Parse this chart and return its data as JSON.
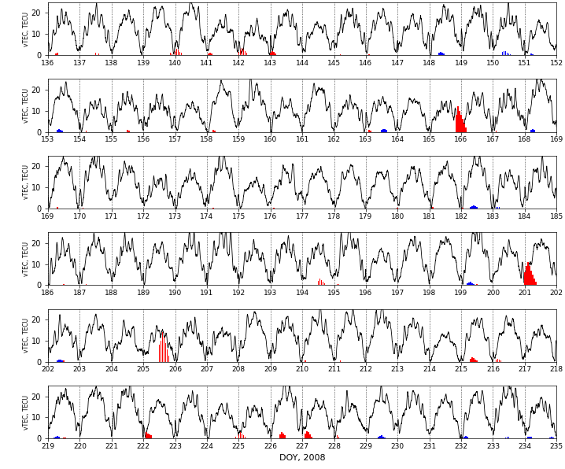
{
  "rows": [
    {
      "doy_start": 136,
      "doy_end": 152,
      "x_ticks": [
        136,
        137,
        138,
        139,
        140,
        141,
        142,
        143,
        144,
        145,
        146,
        147,
        148,
        149,
        150,
        151,
        152
      ]
    },
    {
      "doy_start": 153,
      "doy_end": 169,
      "x_ticks": [
        153,
        154,
        155,
        156,
        157,
        158,
        159,
        160,
        161,
        162,
        163,
        164,
        165,
        166,
        167,
        168,
        169
      ]
    },
    {
      "doy_start": 169,
      "doy_end": 185,
      "x_ticks": [
        169,
        170,
        171,
        172,
        173,
        174,
        175,
        176,
        177,
        178,
        179,
        180,
        181,
        182,
        183,
        184,
        185
      ]
    },
    {
      "doy_start": 186,
      "doy_end": 202,
      "x_ticks": [
        186,
        187,
        188,
        189,
        190,
        191,
        192,
        193,
        194,
        195,
        196,
        197,
        198,
        199,
        200,
        201,
        202
      ]
    },
    {
      "doy_start": 202,
      "doy_end": 218,
      "x_ticks": [
        202,
        203,
        204,
        205,
        206,
        207,
        208,
        209,
        210,
        211,
        212,
        213,
        214,
        215,
        216,
        217,
        218
      ]
    },
    {
      "doy_start": 219,
      "doy_end": 235,
      "x_ticks": [
        219,
        220,
        221,
        222,
        223,
        224,
        225,
        226,
        227,
        228,
        229,
        230,
        231,
        232,
        233,
        234,
        235
      ]
    }
  ],
  "ylim": [
    0,
    25
  ],
  "yticks": [
    0,
    10,
    20
  ],
  "ylabel": "vTEC, TECU",
  "xlabel": "DOY, 2008",
  "line_color": "#000000",
  "red_color": "#ff0000",
  "blue_color": "#0000ff",
  "special_red": {
    "0": [
      [
        136.25,
        0.8
      ],
      [
        136.3,
        1.0
      ],
      [
        137.5,
        1.2
      ],
      [
        137.6,
        0.9
      ],
      [
        139.85,
        1.0
      ],
      [
        139.9,
        0.8
      ],
      [
        140.0,
        2.0
      ],
      [
        140.05,
        3.0
      ],
      [
        140.1,
        2.5
      ],
      [
        140.15,
        1.5
      ],
      [
        140.2,
        1.0
      ],
      [
        141.05,
        0.8
      ],
      [
        141.1,
        1.2
      ],
      [
        141.15,
        0.9
      ],
      [
        142.0,
        1.5
      ],
      [
        142.05,
        2.5
      ],
      [
        142.1,
        3.5
      ],
      [
        142.15,
        2.5
      ],
      [
        142.2,
        2.0
      ],
      [
        142.25,
        1.0
      ],
      [
        143.0,
        1.0
      ],
      [
        143.05,
        2.0
      ],
      [
        143.1,
        1.5
      ],
      [
        143.15,
        0.8
      ],
      [
        145.2,
        0.5
      ],
      [
        146.1,
        0.5
      ]
    ],
    "1": [
      [
        154.2,
        0.6
      ],
      [
        155.5,
        0.8
      ],
      [
        155.55,
        0.6
      ],
      [
        158.2,
        1.0
      ],
      [
        158.25,
        0.7
      ],
      [
        163.1,
        0.8
      ],
      [
        163.15,
        0.5
      ],
      [
        165.85,
        8.0
      ],
      [
        165.9,
        12.0
      ],
      [
        165.95,
        10.0
      ],
      [
        166.0,
        8.0
      ],
      [
        166.05,
        6.0
      ],
      [
        166.1,
        4.0
      ],
      [
        166.15,
        2.0
      ],
      [
        167.1,
        0.5
      ],
      [
        168.2,
        0.6
      ]
    ],
    "2": [
      [
        169.3,
        0.6
      ],
      [
        170.1,
        0.5
      ],
      [
        174.2,
        0.5
      ],
      [
        176.1,
        0.5
      ],
      [
        180.0,
        0.5
      ],
      [
        181.1,
        0.6
      ],
      [
        182.05,
        0.5
      ]
    ],
    "3": [
      [
        186.5,
        0.5
      ],
      [
        187.2,
        0.6
      ],
      [
        194.5,
        2.0
      ],
      [
        194.55,
        3.0
      ],
      [
        194.6,
        2.5
      ],
      [
        194.65,
        1.5
      ],
      [
        194.7,
        0.8
      ],
      [
        195.1,
        0.7
      ],
      [
        195.15,
        0.5
      ],
      [
        199.5,
        0.6
      ],
      [
        201.0,
        6.0
      ],
      [
        201.05,
        9.0
      ],
      [
        201.1,
        11.0
      ],
      [
        201.15,
        9.0
      ],
      [
        201.2,
        7.0
      ],
      [
        201.25,
        5.0
      ],
      [
        201.3,
        3.0
      ],
      [
        201.35,
        1.5
      ]
    ],
    "4": [
      [
        202.5,
        0.5
      ],
      [
        205.5,
        8.0
      ],
      [
        205.55,
        10.0
      ],
      [
        205.6,
        14.0
      ],
      [
        205.65,
        12.0
      ],
      [
        205.7,
        9.0
      ],
      [
        205.75,
        6.0
      ],
      [
        205.8,
        3.0
      ],
      [
        210.1,
        0.5
      ],
      [
        211.2,
        0.6
      ],
      [
        215.3,
        1.5
      ],
      [
        215.35,
        2.0
      ],
      [
        215.4,
        1.8
      ],
      [
        215.45,
        1.2
      ],
      [
        215.5,
        0.8
      ],
      [
        216.1,
        1.0
      ],
      [
        216.15,
        1.5
      ],
      [
        216.2,
        1.2
      ],
      [
        216.25,
        0.7
      ]
    ],
    "5": [
      [
        219.5,
        0.5
      ],
      [
        219.55,
        0.6
      ],
      [
        222.1,
        3.0
      ],
      [
        222.15,
        2.5
      ],
      [
        222.2,
        2.0
      ],
      [
        222.25,
        1.5
      ],
      [
        224.9,
        1.0
      ],
      [
        225.0,
        2.0
      ],
      [
        225.05,
        3.0
      ],
      [
        225.1,
        2.5
      ],
      [
        225.15,
        1.5
      ],
      [
        225.2,
        1.0
      ],
      [
        226.3,
        2.0
      ],
      [
        226.35,
        3.0
      ],
      [
        226.4,
        2.5
      ],
      [
        226.45,
        1.5
      ],
      [
        227.1,
        2.5
      ],
      [
        227.15,
        3.5
      ],
      [
        227.2,
        3.0
      ],
      [
        227.25,
        2.0
      ],
      [
        227.3,
        1.0
      ],
      [
        228.1,
        1.5
      ],
      [
        228.15,
        1.0
      ]
    ]
  },
  "special_blue": {
    "0": [
      [
        148.3,
        1.2
      ],
      [
        148.35,
        1.5
      ],
      [
        148.4,
        1.2
      ],
      [
        148.45,
        0.8
      ],
      [
        150.3,
        1.5
      ],
      [
        150.35,
        2.0
      ],
      [
        150.4,
        1.8
      ],
      [
        150.45,
        1.2
      ],
      [
        150.5,
        0.8
      ],
      [
        150.55,
        0.5
      ],
      [
        151.2,
        0.8
      ],
      [
        151.25,
        0.5
      ]
    ],
    "1": [
      [
        153.3,
        0.8
      ],
      [
        153.35,
        1.2
      ],
      [
        153.4,
        1.0
      ],
      [
        153.45,
        0.6
      ],
      [
        163.5,
        1.0
      ],
      [
        163.55,
        1.5
      ],
      [
        163.6,
        1.2
      ],
      [
        163.65,
        0.8
      ],
      [
        168.2,
        1.0
      ],
      [
        168.25,
        1.2
      ],
      [
        168.3,
        0.8
      ]
    ],
    "2": [
      [
        182.3,
        0.8
      ],
      [
        182.35,
        1.2
      ],
      [
        182.4,
        1.5
      ],
      [
        182.45,
        1.2
      ],
      [
        182.5,
        0.8
      ],
      [
        183.1,
        0.6
      ],
      [
        183.15,
        0.9
      ],
      [
        183.2,
        0.7
      ]
    ],
    "3": [
      [
        199.2,
        0.8
      ],
      [
        199.25,
        1.2
      ],
      [
        199.3,
        1.5
      ],
      [
        199.35,
        1.0
      ],
      [
        199.4,
        0.6
      ]
    ],
    "4": [
      [
        202.3,
        0.8
      ],
      [
        202.35,
        1.2
      ],
      [
        202.4,
        1.0
      ],
      [
        202.45,
        0.6
      ]
    ],
    "5": [
      [
        219.2,
        0.6
      ],
      [
        219.25,
        1.0
      ],
      [
        219.3,
        1.2
      ],
      [
        219.35,
        0.8
      ],
      [
        229.4,
        0.8
      ],
      [
        229.45,
        1.2
      ],
      [
        229.5,
        1.5
      ],
      [
        229.55,
        1.0
      ],
      [
        229.6,
        0.6
      ],
      [
        232.1,
        0.8
      ],
      [
        232.15,
        1.2
      ],
      [
        232.2,
        0.9
      ],
      [
        233.4,
        0.6
      ],
      [
        233.45,
        0.9
      ],
      [
        233.5,
        0.7
      ],
      [
        234.1,
        0.8
      ],
      [
        234.15,
        1.0
      ],
      [
        234.2,
        0.7
      ],
      [
        234.8,
        0.5
      ],
      [
        234.85,
        0.8
      ],
      [
        234.9,
        0.6
      ]
    ]
  }
}
